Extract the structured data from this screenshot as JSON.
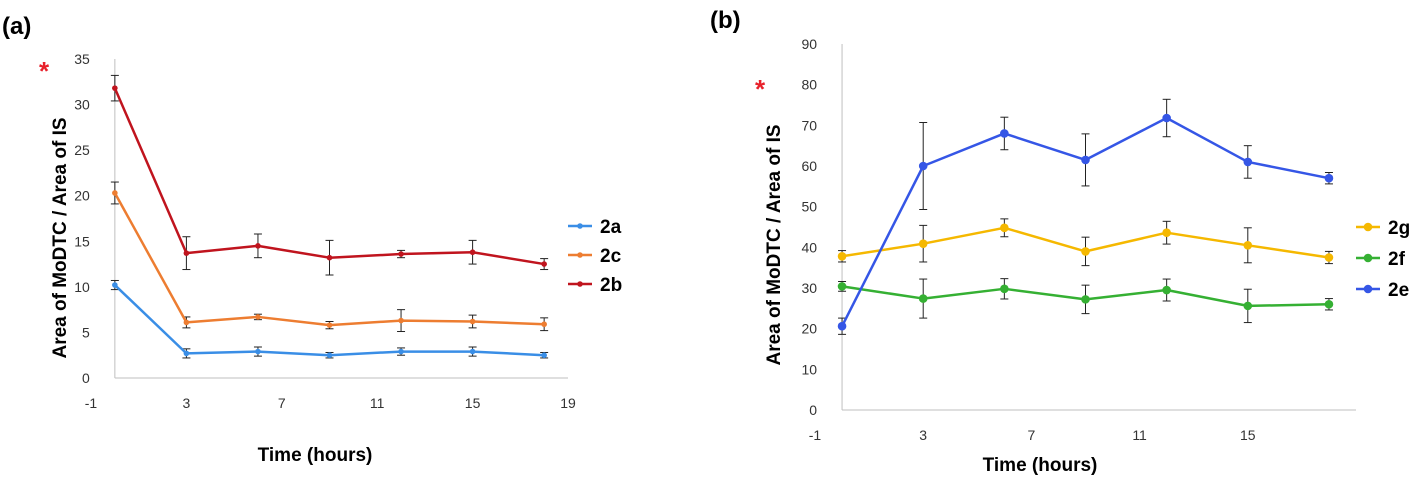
{
  "chart_data": [
    {
      "type": "line",
      "panel_label": "(a)",
      "xlabel": "Time (hours)",
      "ylabel": "Area of  MoDTC / Area of IS",
      "ylabel_mark": "*",
      "xlim": [
        -1,
        19
      ],
      "ylim": [
        0,
        35
      ],
      "xticks": [
        -1,
        3,
        7,
        11,
        15,
        19
      ],
      "yticks": [
        0,
        5,
        10,
        15,
        20,
        25,
        30,
        35
      ],
      "grid": false,
      "legend_position": "right",
      "x": [
        0,
        3,
        6,
        9,
        12,
        15,
        18
      ],
      "series": [
        {
          "name": "2a",
          "color": "#3a8ee6",
          "values": [
            10.2,
            2.7,
            2.9,
            2.5,
            2.9,
            2.9,
            2.5
          ],
          "errors": [
            0.5,
            0.5,
            0.5,
            0.3,
            0.4,
            0.5,
            0.3
          ]
        },
        {
          "name": "2c",
          "color": "#ed7d31",
          "values": [
            20.3,
            6.1,
            6.7,
            5.8,
            6.3,
            6.2,
            5.9
          ],
          "errors": [
            1.2,
            0.6,
            0.3,
            0.4,
            1.2,
            0.7,
            0.7
          ]
        },
        {
          "name": "2b",
          "color": "#c0141e",
          "values": [
            31.8,
            13.7,
            14.5,
            13.2,
            13.6,
            13.8,
            12.5
          ],
          "errors": [
            1.4,
            1.8,
            1.3,
            1.9,
            0.4,
            1.3,
            0.6
          ]
        }
      ]
    },
    {
      "type": "line",
      "panel_label": "(b)",
      "xlabel": "Time (hours)",
      "ylabel": "Area of MoDTC / Area of IS",
      "ylabel_mark": "*",
      "xlim": [
        -1,
        19
      ],
      "ylim": [
        0,
        90
      ],
      "xticks": [
        -1,
        3,
        7,
        11,
        15
      ],
      "yticks": [
        0,
        10,
        20,
        30,
        40,
        50,
        60,
        70,
        80,
        90
      ],
      "grid": false,
      "legend_position": "right",
      "x": [
        0,
        3,
        6,
        9,
        12,
        15,
        18
      ],
      "series": [
        {
          "name": "2g",
          "color": "#f5b800",
          "values": [
            37.8,
            40.9,
            44.8,
            39.0,
            43.6,
            40.5,
            37.5
          ],
          "errors": [
            1.4,
            4.5,
            2.2,
            3.5,
            2.8,
            4.3,
            1.5
          ]
        },
        {
          "name": "2f",
          "color": "#35b033",
          "values": [
            30.4,
            27.4,
            29.8,
            27.2,
            29.5,
            25.6,
            26.0
          ],
          "errors": [
            1.2,
            4.8,
            2.5,
            3.5,
            2.7,
            4.1,
            1.4
          ]
        },
        {
          "name": "2e",
          "color": "#3556e6",
          "values": [
            20.6,
            60.0,
            68.0,
            61.5,
            71.8,
            61.0,
            57.0
          ],
          "errors": [
            2.0,
            10.7,
            4.0,
            6.4,
            4.6,
            4.0,
            1.4
          ]
        }
      ]
    }
  ]
}
